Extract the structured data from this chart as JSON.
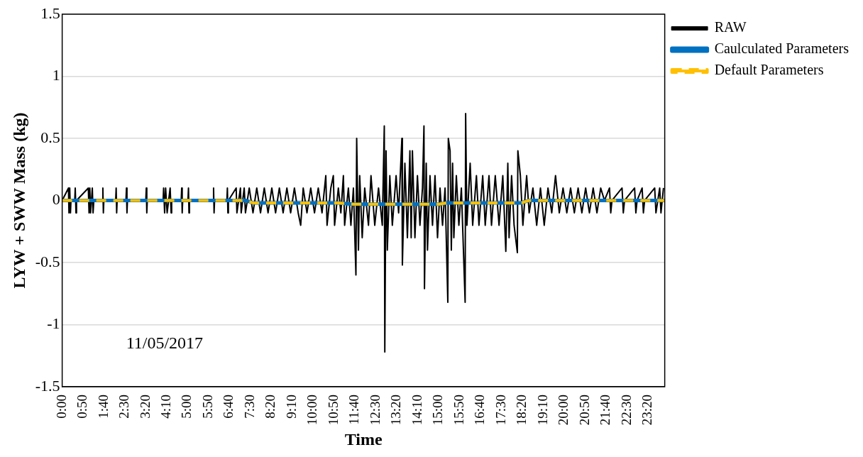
{
  "chart_data": {
    "type": "line",
    "xlabel": "Time",
    "ylabel": "LYW + SWW Mass (kg)",
    "annotations": [
      "11/05/2017"
    ],
    "xlim": [
      0,
      24
    ],
    "ylim": [
      -1.5,
      1.5
    ],
    "yticks": [
      -1.5,
      -1,
      -0.5,
      0,
      0.5,
      1,
      1.5
    ],
    "xticks": [
      {
        "value": 0,
        "label": "0:00"
      },
      {
        "value": 0.8333,
        "label": "0:50"
      },
      {
        "value": 1.6667,
        "label": "1:40"
      },
      {
        "value": 2.5,
        "label": "2:30"
      },
      {
        "value": 3.3333,
        "label": "3:20"
      },
      {
        "value": 4.1667,
        "label": "4:10"
      },
      {
        "value": 5,
        "label": "5:00"
      },
      {
        "value": 5.8333,
        "label": "5:50"
      },
      {
        "value": 6.6667,
        "label": "6:40"
      },
      {
        "value": 7.5,
        "label": "7:30"
      },
      {
        "value": 8.3333,
        "label": "8:20"
      },
      {
        "value": 9.1667,
        "label": "9:10"
      },
      {
        "value": 10,
        "label": "10:00"
      },
      {
        "value": 10.8333,
        "label": "10:50"
      },
      {
        "value": 11.6667,
        "label": "11:40"
      },
      {
        "value": 12.5,
        "label": "12:30"
      },
      {
        "value": 13.3333,
        "label": "13:20"
      },
      {
        "value": 14.1667,
        "label": "14:10"
      },
      {
        "value": 15,
        "label": "15:00"
      },
      {
        "value": 15.8333,
        "label": "15:50"
      },
      {
        "value": 16.6667,
        "label": "16:40"
      },
      {
        "value": 17.5,
        "label": "17:30"
      },
      {
        "value": 18.3333,
        "label": "18:20"
      },
      {
        "value": 19.1667,
        "label": "19:10"
      },
      {
        "value": 20,
        "label": "20:00"
      },
      {
        "value": 20.8333,
        "label": "20:50"
      },
      {
        "value": 21.6667,
        "label": "21:40"
      },
      {
        "value": 22.5,
        "label": "22:30"
      },
      {
        "value": 23.3333,
        "label": "23:20"
      }
    ],
    "grid": "y",
    "legend": "top right",
    "marker": "none",
    "series": [
      {
        "name": "RAW",
        "color": "#000000",
        "line_style": "solid",
        "x": [
          0,
          0.25,
          0.27,
          0.3,
          0.33,
          0.35,
          0.5,
          0.52,
          0.55,
          0.57,
          1.04,
          1.07,
          1.1,
          1.13,
          1.2,
          1.23,
          1.26,
          1.6,
          1.62,
          1.64,
          1.66,
          2.13,
          2.15,
          2.17,
          2.19,
          2.54,
          2.56,
          2.58,
          2.6,
          3.33,
          3.35,
          3.37,
          3.39,
          4.02,
          4.04,
          4.08,
          4.12,
          4.18,
          4.3,
          4.34,
          4.36,
          4.74,
          4.76,
          4.78,
          4.8,
          5.01,
          5.03,
          5.05,
          5.07,
          6.01,
          6.03,
          6.05,
          6.07,
          6.56,
          6.58,
          6.6,
          6.62,
          6.93,
          6.96,
          7.1,
          7.13,
          7.25,
          7.3,
          7.45,
          7.6,
          7.75,
          7.9,
          8.05,
          8.2,
          8.35,
          8.5,
          8.65,
          8.8,
          8.95,
          9.1,
          9.25,
          9.4,
          9.5,
          9.6,
          9.75,
          9.9,
          10.05,
          10.2,
          10.35,
          10.5,
          10.55,
          10.7,
          10.8,
          10.85,
          11,
          11.1,
          11.2,
          11.25,
          11.4,
          11.5,
          11.6,
          11.7,
          11.73,
          11.8,
          11.85,
          11.95,
          12.05,
          12.2,
          12.3,
          12.45,
          12.6,
          12.75,
          12.83,
          12.85,
          12.9,
          12.95,
          13.05,
          13.15,
          13.3,
          13.4,
          13.53,
          13.55,
          13.65,
          13.75,
          13.85,
          13.9,
          13.95,
          14.05,
          14.15,
          14.25,
          14.35,
          14.41,
          14.43,
          14.5,
          14.55,
          14.65,
          14.75,
          14.85,
          14.95,
          15.05,
          15.15,
          15.25,
          15.36,
          15.38,
          15.45,
          15.5,
          15.55,
          15.6,
          15.7,
          15.8,
          15.9,
          16.05,
          16.07,
          16.12,
          16.25,
          16.35,
          16.5,
          16.6,
          16.75,
          16.85,
          17,
          17.1,
          17.25,
          17.4,
          17.55,
          17.67,
          17.75,
          17.8,
          17.9,
          18,
          18.13,
          18.15,
          18.25,
          18.35,
          18.5,
          18.6,
          18.75,
          18.9,
          19.05,
          19.2,
          19.35,
          19.5,
          19.65,
          19.8,
          19.95,
          20.1,
          20.25,
          20.4,
          20.55,
          20.7,
          20.85,
          21,
          21.15,
          21.3,
          21.45,
          21.6,
          21.8,
          21.85,
          21.9,
          22.3,
          22.35,
          22.4,
          22.8,
          22.85,
          22.9,
          23.1,
          23.15,
          23.2,
          23.6,
          23.65,
          23.8,
          23.85,
          23.95
        ],
        "values": [
          0,
          0.1,
          -0.1,
          0.1,
          -0.1,
          0,
          0,
          0.1,
          -0.1,
          0,
          0.1,
          -0.1,
          0.1,
          -0.1,
          0.1,
          -0.1,
          0,
          0,
          0.1,
          -0.1,
          0,
          0,
          0.1,
          -0.1,
          0,
          0,
          0.1,
          -0.1,
          0,
          0,
          0.1,
          -0.1,
          0,
          0,
          0.1,
          -0.1,
          0.1,
          -0.1,
          0.1,
          -0.1,
          0,
          0,
          0.1,
          -0.1,
          0,
          0,
          0.1,
          -0.1,
          0,
          0,
          0.1,
          -0.1,
          0,
          0,
          0.1,
          -0.1,
          0,
          0.1,
          -0.1,
          0.1,
          -0.1,
          0.1,
          -0.1,
          0.1,
          -0.1,
          0.1,
          -0.1,
          0.1,
          -0.1,
          0.1,
          -0.1,
          0.1,
          -0.1,
          0.1,
          -0.1,
          0.1,
          -0.1,
          -0.2,
          0.1,
          -0.1,
          0.1,
          -0.1,
          0.1,
          -0.1,
          0.2,
          -0.2,
          0.1,
          0.2,
          -0.2,
          0.1,
          -0.1,
          0.2,
          -0.2,
          0.1,
          -0.2,
          0.1,
          -0.6,
          0.5,
          -0.4,
          0.2,
          -0.3,
          0.1,
          -0.2,
          0.2,
          -0.2,
          0.1,
          -0.2,
          0.6,
          -1.22,
          0.4,
          -0.4,
          0.2,
          -0.2,
          0.2,
          -0.1,
          0.5,
          -0.52,
          0.3,
          -0.3,
          0.4,
          -0.3,
          0.4,
          -0.3,
          0.2,
          -0.2,
          0.1,
          0.6,
          -0.71,
          0.3,
          -0.4,
          0.2,
          -0.2,
          0.2,
          -0.3,
          0.1,
          -0.2,
          0.1,
          -0.82,
          0.5,
          0.4,
          -0.4,
          0.3,
          -0.3,
          0.2,
          -0.2,
          0.1,
          -0.82,
          0.7,
          -0.2,
          0.3,
          -0.2,
          0.2,
          -0.2,
          0.2,
          -0.2,
          0.2,
          -0.2,
          0.2,
          -0.2,
          0.2,
          -0.41,
          0.3,
          -0.3,
          0.2,
          -0.2,
          -0.42,
          0.4,
          0.2,
          -0.2,
          0.2,
          -0.1,
          0.1,
          -0.2,
          0.1,
          -0.2,
          0.1,
          -0.1,
          0.2,
          -0.1,
          0.1,
          -0.1,
          0.1,
          -0.1,
          0.1,
          -0.1,
          0.1,
          -0.1,
          0.1,
          -0.1,
          0.1,
          0,
          0.1,
          -0.1,
          0,
          0.1,
          -0.1,
          0,
          0.1,
          -0.1,
          0,
          0.1,
          -0.1,
          0,
          0.1,
          -0.1,
          0.1,
          -0.1,
          0.1
        ]
      },
      {
        "name": "Caulculated Parameters",
        "color": "#0070c0",
        "line_style": "solid",
        "x": [
          0,
          7.3,
          7.6,
          11,
          11.6,
          15,
          15.3,
          18.3,
          18.6,
          24
        ],
        "values": [
          0,
          0,
          -0.02,
          -0.02,
          -0.03,
          -0.03,
          -0.02,
          -0.02,
          0,
          0
        ]
      },
      {
        "name": "Default Parameters",
        "color": "#ffc000",
        "line_style": "dashed",
        "x": [
          0,
          7.3,
          7.6,
          11,
          11.6,
          15,
          15.3,
          18.3,
          18.6,
          24
        ],
        "values": [
          0,
          0,
          -0.02,
          -0.02,
          -0.03,
          -0.03,
          -0.02,
          -0.02,
          0,
          0
        ]
      }
    ]
  }
}
